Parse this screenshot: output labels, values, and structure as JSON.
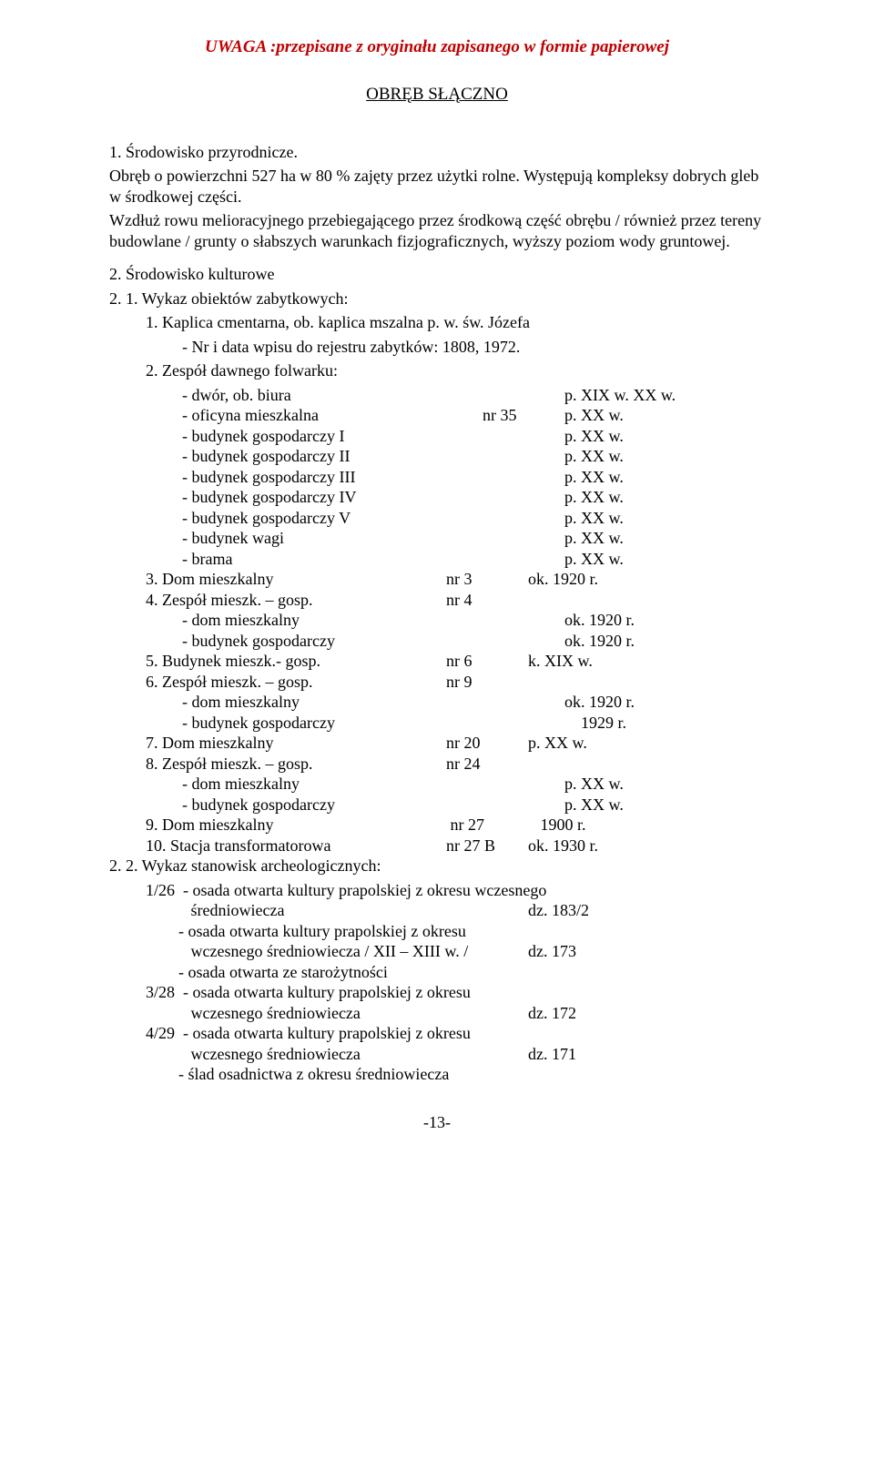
{
  "notice": "UWAGA :przepisane z oryginału zapisanego w  formie papierowej",
  "title": "OBRĘB SŁĄCZNO",
  "sec1": {
    "head": "1.       Środowisko przyrodnicze.",
    "p1": "Obręb o powierzchni 527 ha w 80 % zajęty przez użytki rolne. Występują kompleksy dobrych gleb w środkowej części.",
    "p2": "Wzdłuż rowu melioracyjnego przebiegającego przez środkową część obrębu / również przez tereny budowlane / grunty o słabszych warunkach fizjograficznych, wyższy poziom wody gruntowej."
  },
  "sec2": {
    "head": "2.       Środowisko kulturowe",
    "sub1": "2. 1.    Wykaz obiektów zabytkowych:",
    "item1a": "1.   Kaplica cmentarna, ob. kaplica mszalna p. w. św. Józefa",
    "item1b": "-    Nr i data wpisu do rejestru zabytków: 1808, 1972.",
    "item2": "2.   Zespół dawnego folwarku:",
    "rows2": [
      {
        "a": "- dwór, ob. biura",
        "b": "",
        "c": "p. XIX w. XX w."
      },
      {
        "a": "- oficyna mieszkalna",
        "b": "nr 35",
        "c": "p. XX w."
      },
      {
        "a": "- budynek gospodarczy I",
        "b": "",
        "c": "p. XX w."
      },
      {
        "a": "- budynek gospodarczy II",
        "b": "",
        "c": "p. XX w."
      },
      {
        "a": "- budynek gospodarczy III",
        "b": "",
        "c": "p. XX w."
      },
      {
        "a": "- budynek gospodarczy IV",
        "b": "",
        "c": "p. XX w."
      },
      {
        "a": "- budynek gospodarczy V",
        "b": "",
        "c": "p. XX w."
      },
      {
        "a": "- budynek wagi",
        "b": "",
        "c": "p. XX w."
      },
      {
        "a": "- brama",
        "b": "",
        "c": "p. XX w."
      }
    ],
    "rows3": [
      {
        "a": "3. Dom mieszkalny",
        "b": "nr 3",
        "c": "ok. 1920 r."
      },
      {
        "a": "4. Zespół mieszk. – gosp.",
        "b": "nr 4",
        "c": ""
      }
    ],
    "rows4": [
      {
        "a": "- dom mieszkalny",
        "b": "",
        "c": "ok. 1920 r."
      },
      {
        "a": "- budynek gospodarczy",
        "b": "",
        "c": "ok. 1920 r."
      }
    ],
    "rows5": [
      {
        "a": "5. Budynek mieszk.- gosp.",
        "b": "nr 6",
        "c": "k. XIX w."
      },
      {
        "a": "6. Zespół mieszk. – gosp.",
        "b": "nr 9",
        "c": ""
      }
    ],
    "rows6": [
      {
        "a": "- dom mieszkalny",
        "b": "",
        "c": "ok. 1920 r."
      },
      {
        "a": "- budynek gospodarczy",
        "b": "",
        "c": "    1929 r."
      }
    ],
    "rows7": [
      {
        "a": "7. Dom mieszkalny",
        "b": "nr 20",
        "c": "p. XX w."
      },
      {
        "a": "8. Zespół mieszk. – gosp.",
        "b": "nr 24",
        "c": ""
      }
    ],
    "rows8": [
      {
        "a": "- dom mieszkalny",
        "b": "",
        "c": "p. XX w."
      },
      {
        "a": "- budynek gospodarczy",
        "b": "",
        "c": "p. XX w."
      }
    ],
    "rows9": [
      {
        "a": "9. Dom mieszkalny",
        "b": " nr 27",
        "c": "   1900 r."
      },
      {
        "a": "10. Stacja transformatorowa",
        "b": "nr 27 B",
        "c": "ok. 1930 r."
      }
    ],
    "sub2": "2. 2.    Wykaz stanowisk archeologicznych:",
    "arch": [
      {
        "a": "1/26  - osada otwarta kultury prapolskiej z okresu wczesnego",
        "c": ""
      },
      {
        "a": "           średniowiecza",
        "c": "dz. 183/2"
      },
      {
        "a": "        - osada otwarta kultury prapolskiej z okresu",
        "c": ""
      },
      {
        "a": "           wczesnego średniowiecza / XII – XIII w. /",
        "c": "dz. 173"
      },
      {
        "a": "        - osada otwarta ze starożytności",
        "c": ""
      },
      {
        "a": "3/28  - osada otwarta kultury prapolskiej z okresu",
        "c": ""
      },
      {
        "a": "           wczesnego średniowiecza",
        "c": "dz. 172"
      },
      {
        "a": "4/29  - osada otwarta kultury prapolskiej z okresu",
        "c": ""
      },
      {
        "a": "           wczesnego średniowiecza",
        "c": "dz. 171"
      },
      {
        "a": "        - ślad osadnictwa z okresu średniowiecza",
        "c": ""
      }
    ]
  },
  "footer": "-13-"
}
